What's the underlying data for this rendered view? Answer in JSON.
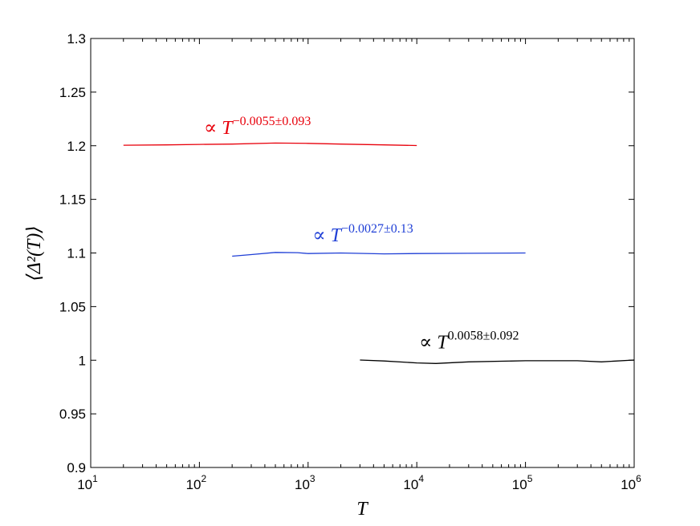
{
  "chart_data": {
    "type": "line",
    "xscale": "log",
    "xlim": [
      10,
      1000000
    ],
    "ylim": [
      0.9,
      1.3
    ],
    "xlabel": "T",
    "ylabel": "⟨Δ²(T)⟩",
    "grid": false,
    "x_ticks": [
      {
        "base": "10",
        "exp": "1",
        "value": 10
      },
      {
        "base": "10",
        "exp": "2",
        "value": 100
      },
      {
        "base": "10",
        "exp": "3",
        "value": 1000
      },
      {
        "base": "10",
        "exp": "4",
        "value": 10000
      },
      {
        "base": "10",
        "exp": "5",
        "value": 100000
      },
      {
        "base": "10",
        "exp": "6",
        "value": 1000000
      }
    ],
    "y_ticks": [
      "0.9",
      "0.95",
      "1",
      "1.05",
      "1.1",
      "1.15",
      "1.2",
      "1.25",
      "1.3"
    ],
    "series": [
      {
        "color": "#e8000b",
        "points": [
          [
            20,
            1.2005
          ],
          [
            50,
            1.2008
          ],
          [
            100,
            1.2012
          ],
          [
            200,
            1.2015
          ],
          [
            500,
            1.2025
          ],
          [
            1000,
            1.2022
          ],
          [
            2000,
            1.2015
          ],
          [
            5000,
            1.2008
          ],
          [
            10000,
            1.2002
          ]
        ],
        "annotation": {
          "prefix": "∝ ",
          "base": "T",
          "exp": "−0.0055±0.093",
          "x": 110,
          "y": 1.211
        }
      },
      {
        "color": "#1f3fd6",
        "points": [
          [
            200,
            1.097
          ],
          [
            300,
            1.0985
          ],
          [
            500,
            1.1005
          ],
          [
            800,
            1.1003
          ],
          [
            1000,
            1.0995
          ],
          [
            2000,
            1.1
          ],
          [
            5000,
            1.0992
          ],
          [
            10000,
            1.0995
          ],
          [
            30000,
            1.0997
          ],
          [
            100000,
            1.1
          ]
        ],
        "annotation": {
          "prefix": "∝ ",
          "base": "T",
          "exp": "−0.0027±0.13",
          "x": 1100,
          "y": 1.111
        }
      },
      {
        "color": "#000000",
        "points": [
          [
            3000,
            1.0002
          ],
          [
            5000,
            0.9993
          ],
          [
            10000,
            0.9975
          ],
          [
            15000,
            0.997
          ],
          [
            30000,
            0.9985
          ],
          [
            100000,
            0.9995
          ],
          [
            300000,
            0.9995
          ],
          [
            500000,
            0.9985
          ],
          [
            1000000,
            1.0002
          ]
        ],
        "annotation": {
          "prefix": "∝ ",
          "base": "T",
          "exp": "0.0058±0.092",
          "x": 10500,
          "y": 1.011
        }
      }
    ]
  }
}
